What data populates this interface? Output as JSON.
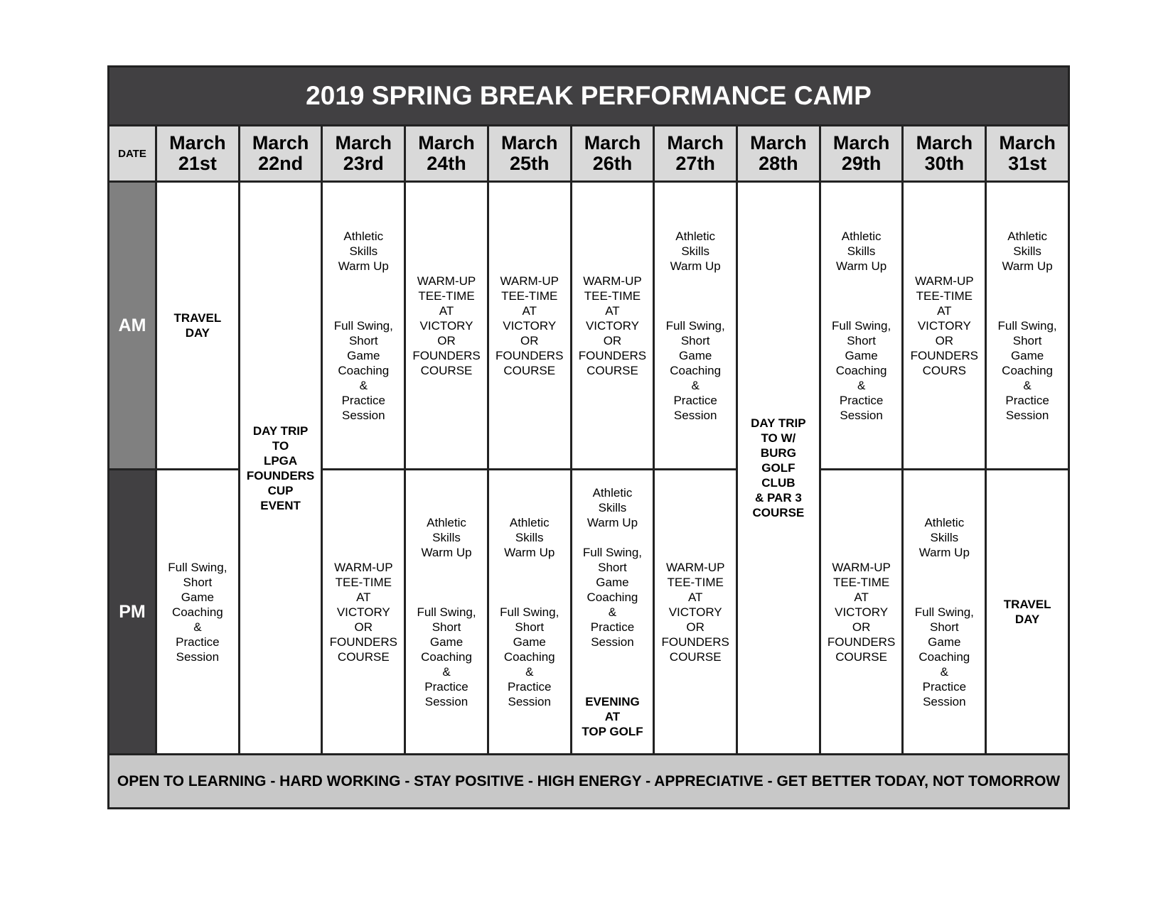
{
  "title": "2019 SPRING BREAK PERFORMANCE CAMP",
  "date_label": "DATE",
  "am_label": "AM",
  "pm_label": "PM",
  "days": [
    "March\n21st",
    "March\n22nd",
    "March\n23rd",
    "March\n24th",
    "March\n25th",
    "March\n26th",
    "March\n27th",
    "March\n28th",
    "March\n29th",
    "March\n30th",
    "March\n31st"
  ],
  "am": [
    {
      "day": 0,
      "segments": [
        {
          "text": "TRAVEL\nDAY",
          "bold": true
        }
      ]
    },
    {
      "day": 1,
      "rowspan": 2,
      "segments": [
        {
          "text": "DAY TRIP\nTO\nLPGA\nFOUNDERS\nCUP\nEVENT",
          "bold": true
        }
      ]
    },
    {
      "day": 2,
      "segments": [
        {
          "text": "Athletic\nSkills\nWarm Up\n\n\n\nFull Swing,\nShort\nGame\nCoaching\n&\nPractice\nSession",
          "bold": false
        }
      ]
    },
    {
      "day": 3,
      "segments": [
        {
          "text": "WARM-UP\nTEE-TIME\nAT\nVICTORY\nOR\nFOUNDERS\nCOURSE",
          "bold": false
        }
      ]
    },
    {
      "day": 4,
      "segments": [
        {
          "text": "WARM-UP\nTEE-TIME\nAT\nVICTORY\nOR\nFOUNDERS\nCOURSE",
          "bold": false
        }
      ]
    },
    {
      "day": 5,
      "segments": [
        {
          "text": "WARM-UP\nTEE-TIME\nAT\nVICTORY\nOR\nFOUNDERS\nCOURSE",
          "bold": false
        }
      ]
    },
    {
      "day": 6,
      "segments": [
        {
          "text": "Athletic\nSkills\nWarm Up\n\n\n\nFull Swing,\nShort\nGame\nCoaching\n&\nPractice\nSession",
          "bold": false
        }
      ]
    },
    {
      "day": 7,
      "rowspan": 2,
      "segments": [
        {
          "text": "DAY TRIP\nTO W/\nBURG\nGOLF\nCLUB\n& PAR 3\nCOURSE",
          "bold": true
        }
      ]
    },
    {
      "day": 8,
      "segments": [
        {
          "text": "Athletic\nSkills\nWarm Up\n\n\n\nFull Swing,\nShort\nGame\nCoaching\n&\nPractice\nSession",
          "bold": false
        }
      ]
    },
    {
      "day": 9,
      "segments": [
        {
          "text": "WARM-UP\nTEE-TIME\nAT\nVICTORY\nOR\nFOUNDERS\nCOURS",
          "bold": false
        }
      ]
    },
    {
      "day": 10,
      "segments": [
        {
          "text": "Athletic\nSkills\nWarm Up\n\n\n\nFull Swing,\nShort\nGame\nCoaching\n&\nPractice\nSession",
          "bold": false
        }
      ]
    }
  ],
  "pm": [
    {
      "day": 0,
      "segments": [
        {
          "text": "Full Swing,\nShort\nGame\nCoaching\n&\nPractice\nSession",
          "bold": false
        }
      ]
    },
    {
      "day": 2,
      "segments": [
        {
          "text": "WARM-UP\nTEE-TIME\nAT\nVICTORY\nOR\nFOUNDERS\nCOURSE",
          "bold": false
        }
      ]
    },
    {
      "day": 3,
      "segments": [
        {
          "text": "Athletic\nSkills\nWarm Up\n\n\n\nFull Swing,\nShort\nGame\nCoaching\n&\nPractice\nSession",
          "bold": false
        }
      ]
    },
    {
      "day": 4,
      "segments": [
        {
          "text": "Athletic\nSkills\nWarm Up\n\n\n\nFull Swing,\nShort\nGame\nCoaching\n&\nPractice\nSession",
          "bold": false
        }
      ]
    },
    {
      "day": 5,
      "segments": [
        {
          "text": "Athletic\nSkills\nWarm Up\n\nFull Swing,\nShort\nGame\nCoaching\n&\nPractice\nSession\n\n\n\n",
          "bold": false
        },
        {
          "text": "EVENING\nAT\nTOP GOLF",
          "bold": true
        }
      ]
    },
    {
      "day": 6,
      "segments": [
        {
          "text": "WARM-UP\nTEE-TIME\nAT\nVICTORY\nOR\nFOUNDERS\nCOURSE",
          "bold": false
        }
      ]
    },
    {
      "day": 8,
      "segments": [
        {
          "text": "WARM-UP\nTEE-TIME\nAT\nVICTORY\nOR\nFOUNDERS\nCOURSE",
          "bold": false
        }
      ]
    },
    {
      "day": 9,
      "segments": [
        {
          "text": "Athletic\nSkills\nWarm Up\n\n\n\nFull Swing,\nShort\nGame\nCoaching\n&\nPractice\nSession",
          "bold": false
        }
      ]
    },
    {
      "day": 10,
      "segments": [
        {
          "text": "TRAVEL\nDAY",
          "bold": true
        }
      ]
    }
  ],
  "footer": "OPEN TO LEARNING - HARD WORKING - STAY POSITIVE - HIGH ENERGY - APPRECIATIVE - GET BETTER TODAY, NOT TOMORROW",
  "colors": {
    "title_bg": "#414042",
    "header_bg": "#d9d9d9",
    "am_bg": "#808080",
    "pm_bg": "#414042",
    "footer_bg": "#c8c8c8"
  }
}
